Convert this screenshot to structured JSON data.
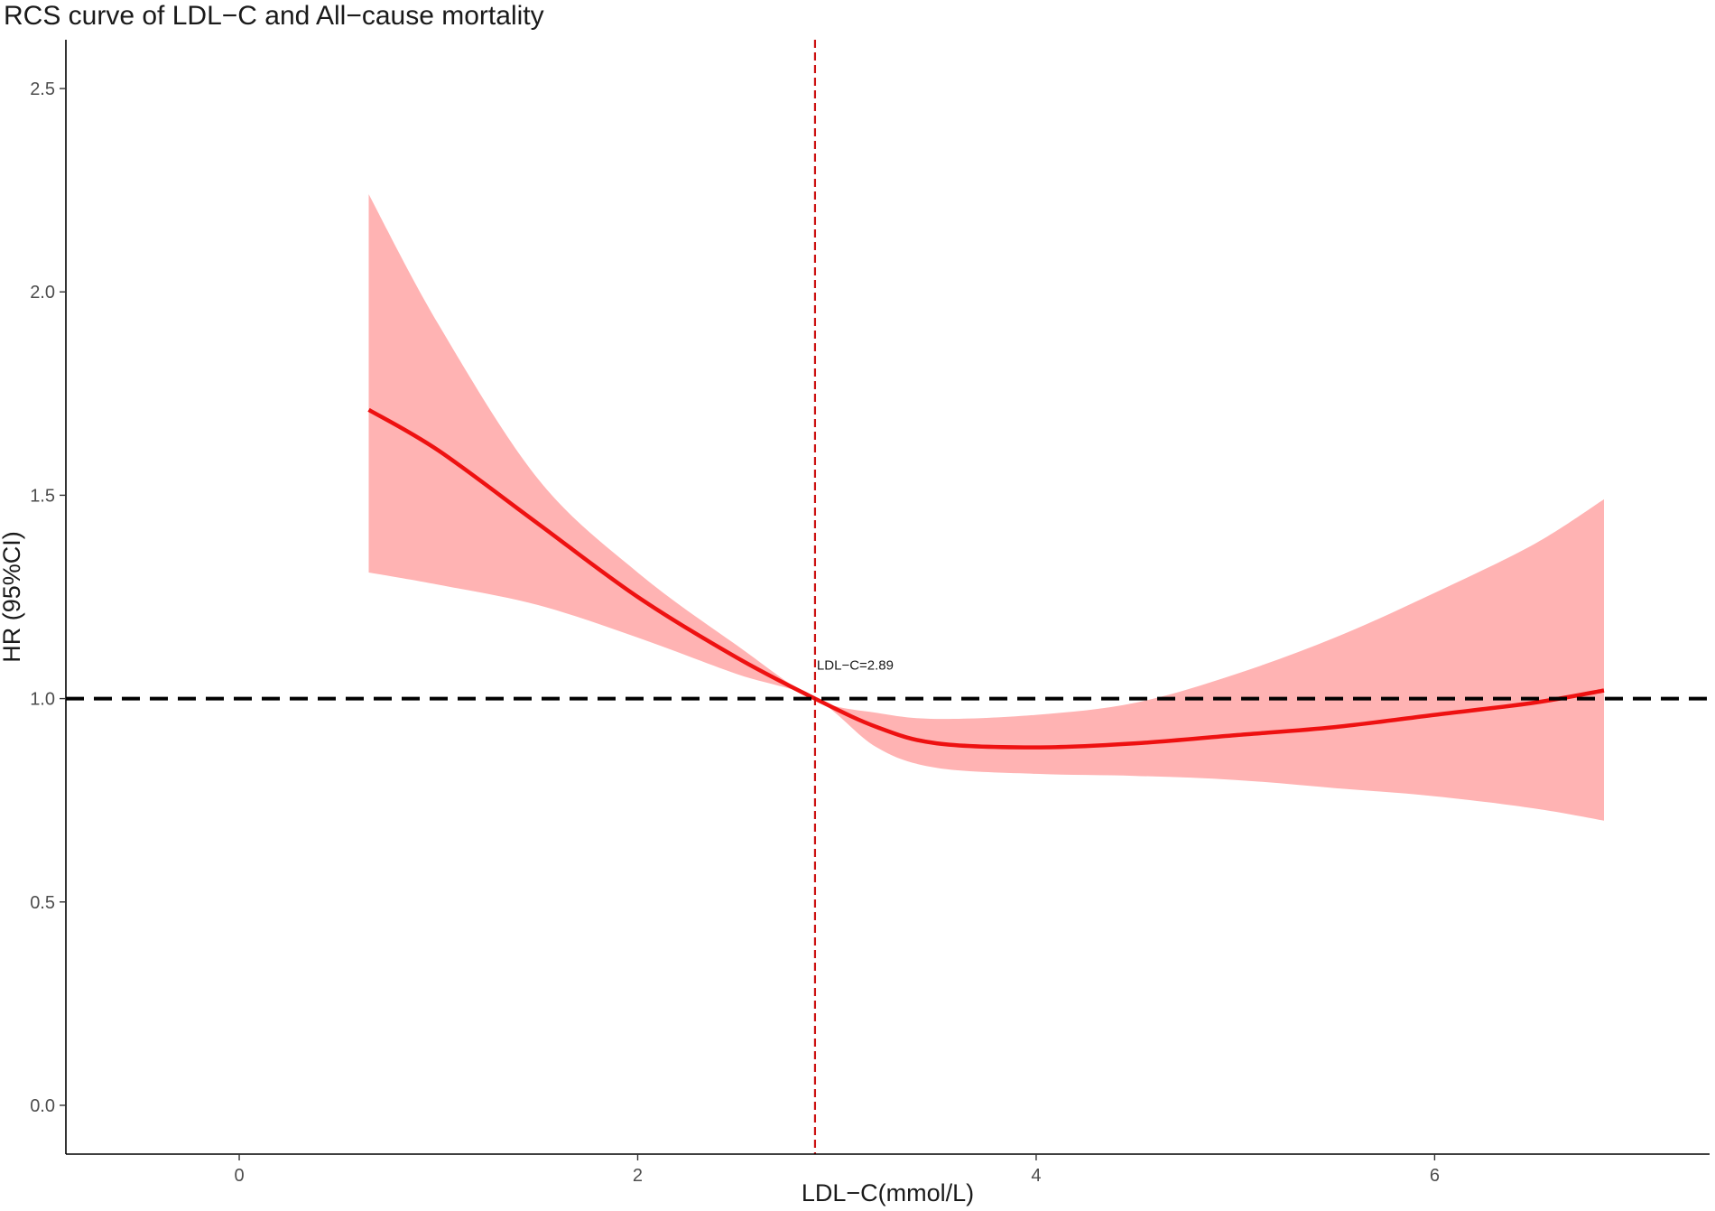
{
  "chart_data": {
    "type": "line",
    "title": "RCS curve of LDL−C and All−cause mortality",
    "xlabel": "LDL−C(mmol/L)",
    "ylabel": "HR (95%CI)",
    "xlim": [
      -0.87,
      7.38
    ],
    "ylim": [
      -0.12,
      2.62
    ],
    "x_ticks": [
      0,
      2,
      4,
      6
    ],
    "x_tick_labels": [
      "0",
      "2",
      "4",
      "6"
    ],
    "y_ticks": [
      0.0,
      0.5,
      1.0,
      1.5,
      2.0,
      2.5
    ],
    "y_tick_labels": [
      "0.0",
      "0.5",
      "1.0",
      "1.5",
      "2.0",
      "2.5"
    ],
    "grid": false,
    "reference_hline": 1.0,
    "reference_vline": 2.89,
    "annotation": "LDL−C=2.89",
    "colors": {
      "line": "#ee1111",
      "band": "#ffb3b3",
      "vline": "#cc1111",
      "hline": "#000000"
    },
    "series": [
      {
        "x": [
          0.65,
          1.0,
          1.5,
          2.0,
          2.5,
          2.89,
          3.2,
          3.5,
          4.0,
          4.5,
          5.0,
          5.5,
          6.0,
          6.5,
          6.85
        ],
        "y": [
          1.71,
          1.61,
          1.43,
          1.25,
          1.1,
          1.0,
          0.93,
          0.89,
          0.88,
          0.89,
          0.91,
          0.93,
          0.96,
          0.99,
          1.02
        ],
        "lower": [
          1.31,
          1.28,
          1.23,
          1.15,
          1.06,
          1.0,
          0.88,
          0.83,
          0.815,
          0.81,
          0.8,
          0.78,
          0.76,
          0.73,
          0.7
        ],
        "upper": [
          2.24,
          1.92,
          1.54,
          1.31,
          1.13,
          1.0,
          0.965,
          0.95,
          0.96,
          0.99,
          1.06,
          1.15,
          1.26,
          1.38,
          1.49
        ]
      }
    ]
  }
}
